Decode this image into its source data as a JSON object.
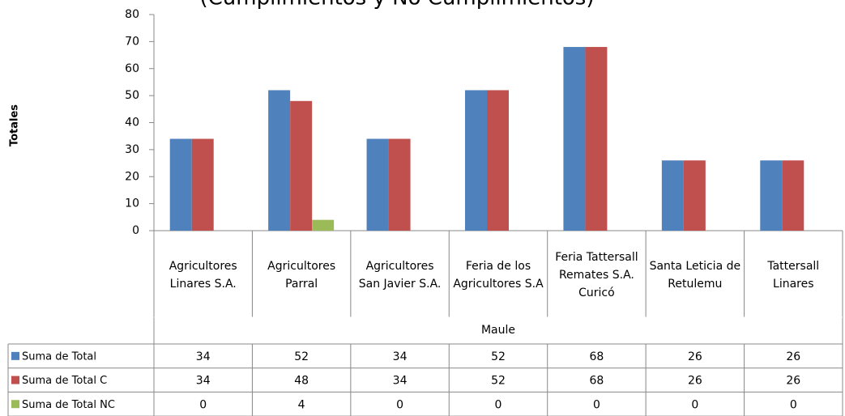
{
  "chart_data": {
    "type": "bar",
    "title": "(Cumplimientos y No Cumplimientos)",
    "y_axis_label": "Totales",
    "group_label": "Maule",
    "categories": [
      "Agricultores Linares S.A.",
      "Agricultores Parral",
      "Agricultores San Javier S.A.",
      "Feria de los Agricultores S.A",
      "Feria Tattersall Remates S.A. Curicó",
      "Santa Leticia de Retulemu",
      "Tattersall Linares"
    ],
    "series": [
      {
        "name": "Suma de Total",
        "color": "#4f81bd",
        "values": [
          34,
          52,
          34,
          52,
          68,
          26,
          26
        ]
      },
      {
        "name": "Suma de Total C",
        "color": "#c0504d",
        "values": [
          34,
          48,
          34,
          52,
          68,
          26,
          26
        ]
      },
      {
        "name": "Suma de Total NC",
        "color": "#9bbb59",
        "values": [
          0,
          4,
          0,
          0,
          0,
          0,
          0
        ]
      }
    ],
    "ylim": [
      0,
      80
    ],
    "yticks": [
      0,
      10,
      20,
      30,
      40,
      50,
      60,
      70,
      80
    ],
    "grid": false
  }
}
